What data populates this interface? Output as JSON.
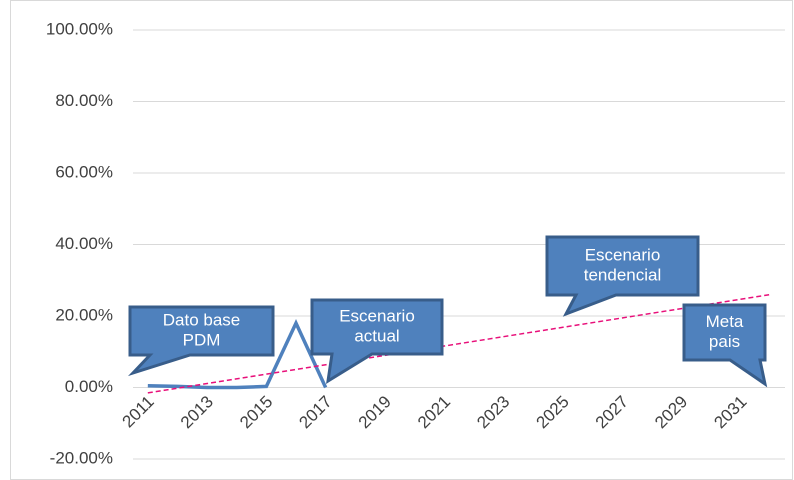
{
  "chart_data": {
    "type": "line",
    "categories": [
      "2011",
      null,
      "2013",
      null,
      "2015",
      null,
      "2017",
      null,
      "2019",
      null,
      "2021",
      null,
      "2023",
      null,
      "2025",
      null,
      "2027",
      null,
      "2029",
      null,
      "2031",
      null
    ],
    "series": [
      {
        "color": "#4f81bd",
        "values": [
          0.5,
          0.3,
          0,
          0,
          0.3,
          18,
          0,
          null,
          null,
          null,
          null,
          null,
          null,
          null,
          null,
          null,
          null,
          null,
          null,
          null,
          null,
          null
        ]
      }
    ],
    "trendline": {
      "color": "#e8107a",
      "dashed": true,
      "values": [
        -1.5,
        26
      ]
    },
    "ylim": [
      -20,
      100
    ],
    "yticks": [
      {
        "value": -20,
        "label": "-20.00%"
      },
      {
        "value": 0,
        "label": "0.00%"
      },
      {
        "value": 20,
        "label": "20.00%"
      },
      {
        "value": 40,
        "label": "40.00%"
      },
      {
        "value": 60,
        "label": "60.00%"
      },
      {
        "value": 80,
        "label": "80.00%"
      },
      {
        "value": 100,
        "label": "100.00%"
      }
    ],
    "grid": true,
    "annotations": [
      {
        "lines": [
          "Dato base",
          "PDM"
        ]
      },
      {
        "lines": [
          "Escenario",
          "actual"
        ]
      },
      {
        "lines": [
          "Escenario",
          "tendencial"
        ]
      },
      {
        "lines": [
          "Meta",
          "pais"
        ]
      }
    ]
  }
}
